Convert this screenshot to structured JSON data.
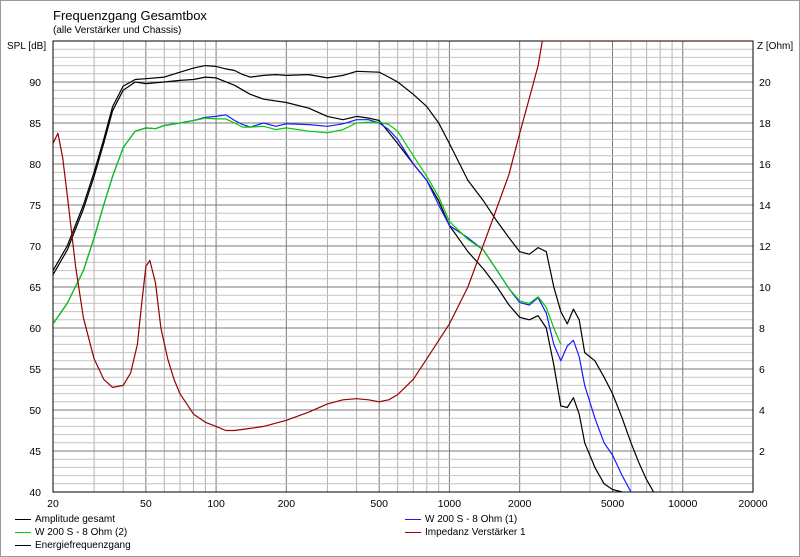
{
  "chart_data": {
    "type": "line",
    "title": "Frequenzgang Gesamtbox",
    "subtitle": "(alle Verstärker und Chassis)",
    "ylabel": "SPL [dB]",
    "y2label": "Z [Ohm]",
    "xscale": "log",
    "xlim": [
      20,
      20000
    ],
    "ylim": [
      40,
      95
    ],
    "y2lim": [
      0,
      22
    ],
    "x_ticks": [
      20,
      50,
      100,
      200,
      500,
      1000,
      2000,
      5000,
      10000,
      20000
    ],
    "x_tick_labels": [
      "20",
      "50",
      "100",
      "200",
      "500",
      "1000",
      "2000",
      "5000",
      "10000",
      "20000"
    ],
    "y_ticks": [
      40,
      45,
      50,
      55,
      60,
      65,
      70,
      75,
      80,
      85,
      90
    ],
    "y2_ticks": [
      2,
      4,
      6,
      8,
      10,
      12,
      14,
      16,
      18,
      20
    ],
    "grid": true,
    "legend_placement": "bottom",
    "series": [
      {
        "name": "Amplitude gesamt",
        "axis": "left",
        "color": "#000000",
        "x": [
          20,
          23,
          27,
          30,
          33,
          36,
          40,
          45,
          50,
          60,
          70,
          80,
          90,
          100,
          110,
          120,
          130,
          140,
          160,
          180,
          200,
          250,
          300,
          350,
          400,
          500,
          550,
          600,
          700,
          800,
          900,
          1000,
          1200,
          1400,
          1600,
          1800,
          2000,
          2200,
          2400,
          2600,
          2800,
          3000,
          3200,
          3400,
          3600,
          3800,
          4200,
          4600,
          5000,
          5500,
          6000,
          6500,
          7000,
          7500
        ],
        "y": [
          67,
          70,
          75,
          79,
          83,
          87,
          89.5,
          90.3,
          90.4,
          90.6,
          91.2,
          91.7,
          92,
          91.9,
          91.6,
          91.4,
          90.9,
          90.6,
          90.8,
          90.9,
          90.8,
          90.9,
          90.5,
          90.8,
          91.3,
          91.2,
          90.6,
          90,
          88.5,
          87,
          85,
          82.5,
          78,
          75.5,
          73,
          71,
          69.3,
          69,
          69.8,
          69.3,
          65,
          62,
          60.5,
          62.3,
          61,
          57,
          56,
          54,
          52,
          49,
          46,
          43.5,
          41.5,
          40
        ]
      },
      {
        "name": "W 200 S - 8 Ohm (1)",
        "axis": "left",
        "color": "#1a1aff",
        "x": [
          20,
          23,
          27,
          30,
          33,
          36,
          40,
          45,
          50,
          55,
          60,
          70,
          80,
          90,
          100,
          110,
          120,
          130,
          140,
          160,
          180,
          200,
          250,
          300,
          350,
          400,
          450,
          500,
          550,
          600,
          700,
          800,
          900,
          1000,
          1200,
          1400,
          1600,
          1800,
          2000,
          2200,
          2400,
          2600,
          2800,
          3000,
          3200,
          3400,
          3600,
          3800,
          4200,
          4600,
          5000,
          5500,
          6000
        ],
        "y": [
          60.5,
          63,
          67,
          71,
          75,
          78.5,
          82,
          84,
          84.4,
          84.3,
          84.7,
          85,
          85.3,
          85.7,
          85.8,
          86,
          85.3,
          84.8,
          84.5,
          85,
          84.6,
          84.9,
          84.8,
          84.6,
          84.9,
          85.4,
          85.4,
          85,
          84.2,
          83,
          80,
          78,
          75,
          72.5,
          71,
          69.5,
          67,
          64.8,
          63.1,
          62.8,
          63.7,
          61.8,
          58,
          56,
          57.8,
          58.5,
          56.5,
          53,
          49,
          46,
          44.5,
          42,
          40
        ]
      },
      {
        "name": "W 200 S - 8 Ohm (2)",
        "axis": "left",
        "color": "#00cc00",
        "x": [
          20,
          23,
          27,
          30,
          33,
          36,
          40,
          45,
          50,
          55,
          60,
          70,
          80,
          90,
          100,
          110,
          120,
          130,
          140,
          160,
          180,
          200,
          250,
          300,
          350,
          400,
          450,
          500,
          550,
          600,
          700,
          800,
          900,
          1000,
          1200,
          1400,
          1600,
          1800,
          2000,
          2200,
          2400,
          2600,
          2800,
          3000
        ],
        "y": [
          60.5,
          63,
          67,
          71,
          75,
          78.5,
          82,
          84,
          84.4,
          84.3,
          84.7,
          85,
          85.3,
          85.6,
          85.5,
          85.5,
          85,
          84.5,
          84.5,
          84.6,
          84.2,
          84.4,
          84,
          83.8,
          84.2,
          85,
          85.1,
          85.1,
          84.8,
          84,
          81,
          78.5,
          76,
          73,
          70.8,
          69.5,
          67,
          64.8,
          63.3,
          63,
          63.8,
          62.5,
          60,
          58
        ]
      },
      {
        "name": "Impedanz Verstärker 1",
        "axis": "right",
        "color": "#990000",
        "x": [
          20,
          21,
          22,
          23,
          25,
          27,
          30,
          33,
          36,
          40,
          43,
          46,
          48,
          50,
          52,
          55,
          58,
          62,
          66,
          70,
          80,
          90,
          100,
          110,
          120,
          140,
          160,
          200,
          250,
          300,
          350,
          400,
          450,
          500,
          550,
          600,
          700,
          800,
          1000,
          1200,
          1500,
          1800,
          2000,
          2200,
          2400,
          2500,
          20000
        ],
        "y": [
          17,
          17.5,
          16.3,
          14.5,
          11,
          8.5,
          6.5,
          5.5,
          5.1,
          5.2,
          5.8,
          7.2,
          9.2,
          11,
          11.3,
          10.2,
          8,
          6.5,
          5.5,
          4.8,
          3.8,
          3.4,
          3.2,
          3.0,
          3.0,
          3.1,
          3.2,
          3.5,
          3.9,
          4.3,
          4.5,
          4.55,
          4.5,
          4.4,
          4.5,
          4.75,
          5.5,
          6.5,
          8.2,
          10,
          13,
          15.5,
          17.5,
          19.2,
          20.8,
          22,
          22
        ]
      },
      {
        "name": "Energiefrequenzgang",
        "axis": "left",
        "color": "#000000",
        "x": [
          20,
          23,
          27,
          30,
          33,
          36,
          40,
          45,
          50,
          60,
          70,
          80,
          90,
          100,
          120,
          140,
          160,
          200,
          250,
          300,
          350,
          400,
          450,
          500,
          600,
          700,
          800,
          900,
          1000,
          1200,
          1400,
          1600,
          1800,
          2000,
          2200,
          2400,
          2600,
          2800,
          3000,
          3200,
          3400,
          3600,
          3800,
          4200,
          4600,
          5000,
          5500
        ],
        "y": [
          66.5,
          69.5,
          74.5,
          78.5,
          82.5,
          86.5,
          89,
          90,
          89.8,
          90,
          90.2,
          90.3,
          90.6,
          90.5,
          89.6,
          88.5,
          87.9,
          87.5,
          86.8,
          85.8,
          85.4,
          85.8,
          85.6,
          85.3,
          82.5,
          80,
          78,
          75.5,
          72.5,
          69.3,
          67.2,
          65,
          62.8,
          61.3,
          61,
          61.5,
          60,
          55.5,
          50.5,
          50.3,
          51.5,
          49.5,
          46,
          43,
          41,
          40.3,
          40
        ]
      }
    ]
  }
}
